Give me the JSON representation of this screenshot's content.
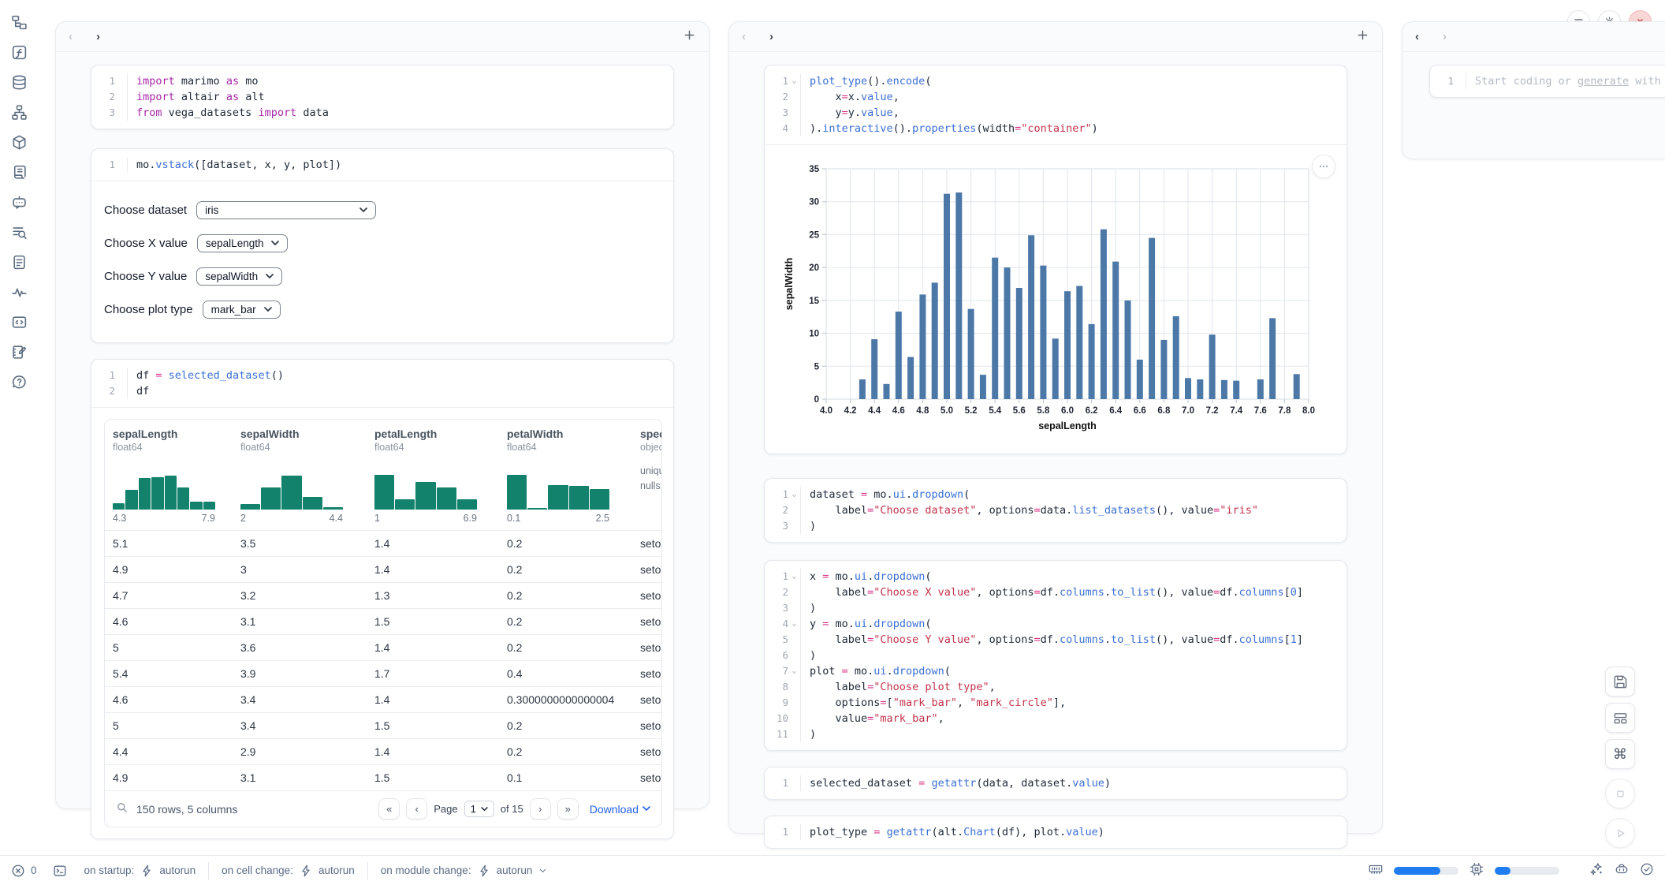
{
  "chart_data": {
    "type": "bar",
    "title": "",
    "xlabel": "sepalLength",
    "ylabel": "sepalWidth",
    "xlim": [
      4.0,
      8.0
    ],
    "ylim": [
      0,
      35
    ],
    "x_tick_step": 0.2,
    "y_tick_step": 5,
    "grid": true,
    "bar_color": "#4c78a8",
    "x": [
      4.3,
      4.4,
      4.5,
      4.6,
      4.7,
      4.8,
      4.9,
      5.0,
      5.1,
      5.2,
      5.3,
      5.4,
      5.5,
      5.6,
      5.7,
      5.8,
      5.9,
      6.0,
      6.1,
      6.2,
      6.3,
      6.4,
      6.5,
      6.6,
      6.7,
      6.8,
      6.9,
      7.0,
      7.1,
      7.2,
      7.3,
      7.4,
      7.6,
      7.7,
      7.9
    ],
    "values": [
      3.0,
      9.1,
      2.3,
      13.3,
      6.4,
      15.9,
      17.7,
      31.2,
      31.4,
      13.7,
      3.7,
      21.5,
      20.0,
      16.9,
      24.9,
      20.3,
      9.2,
      16.4,
      17.2,
      11.4,
      25.8,
      20.9,
      15.0,
      6.0,
      24.5,
      9.0,
      12.6,
      3.2,
      3.0,
      9.8,
      2.9,
      2.8,
      3.0,
      12.3,
      3.8
    ]
  },
  "sidebar": {
    "icons": [
      "file-tree",
      "function",
      "database",
      "dependency-graph",
      "package",
      "scroll",
      "chat-bot",
      "doc-search",
      "snippets",
      "tracing",
      "code-block",
      "scratchpad",
      "help"
    ]
  },
  "window_controls": {
    "buttons": [
      "menu",
      "settings",
      "close"
    ]
  },
  "panels": {
    "left": {
      "cells": [
        {
          "lines": [
            "import marimo as mo",
            "import altair as alt",
            "from vega_datasets import data"
          ],
          "folds": []
        },
        {
          "lines": [
            "mo.vstack([dataset, x, y, plot])"
          ],
          "folds": [],
          "controls": [
            {
              "label": "Choose dataset",
              "value": "iris",
              "wide": true
            },
            {
              "label": "Choose X value",
              "value": "sepalLength",
              "wide": false
            },
            {
              "label": "Choose Y value",
              "value": "sepalWidth",
              "wide": false
            },
            {
              "label": "Choose plot type",
              "value": "mark_bar",
              "wide": false
            }
          ]
        },
        {
          "lines": [
            "df = selected_dataset()",
            "df"
          ],
          "folds": []
        }
      ],
      "table": {
        "columns": [
          {
            "name": "sepalLength",
            "dtype": "float64",
            "hist": [
              13,
              42,
              66,
              68,
              71,
              46,
              17,
              16
            ],
            "min": "4.3",
            "max": "7.9"
          },
          {
            "name": "sepalWidth",
            "dtype": "float64",
            "hist": [
              12,
              46,
              72,
              26,
              5
            ],
            "min": "2",
            "max": "4.4"
          },
          {
            "name": "petalLength",
            "dtype": "float64",
            "hist": [
              74,
              22,
              58,
              47,
              22
            ],
            "min": "1",
            "max": "6.9"
          },
          {
            "name": "petalWidth",
            "dtype": "float64",
            "hist": [
              74,
              3,
              52,
              50,
              43
            ],
            "min": "0.1",
            "max": "2.5"
          },
          {
            "name": "species",
            "dtype": "object",
            "meta": [
              "unique:",
              "nulls:"
            ]
          }
        ],
        "rows": [
          [
            "5.1",
            "3.5",
            "1.4",
            "0.2",
            "setosa"
          ],
          [
            "4.9",
            "3",
            "1.4",
            "0.2",
            "setosa"
          ],
          [
            "4.7",
            "3.2",
            "1.3",
            "0.2",
            "setosa"
          ],
          [
            "4.6",
            "3.1",
            "1.5",
            "0.2",
            "setosa"
          ],
          [
            "5",
            "3.6",
            "1.4",
            "0.2",
            "setosa"
          ],
          [
            "5.4",
            "3.9",
            "1.7",
            "0.4",
            "setosa"
          ],
          [
            "4.6",
            "3.4",
            "1.4",
            "0.3000000000000004",
            "setosa"
          ],
          [
            "5",
            "3.4",
            "1.5",
            "0.2",
            "setosa"
          ],
          [
            "4.4",
            "2.9",
            "1.4",
            "0.2",
            "setosa"
          ],
          [
            "4.9",
            "3.1",
            "1.5",
            "0.1",
            "setosa"
          ]
        ],
        "footer": {
          "summary": "150 rows, 5 columns",
          "page_label": "Page",
          "page_value": "1",
          "of_label": "of 15",
          "download_label": "Download"
        }
      }
    },
    "mid": {
      "cells": [
        {
          "lines": [
            "plot_type().encode(",
            "    x=x.value,",
            "    y=y.value,",
            ").interactive().properties(width=\"container\")"
          ],
          "folds": [
            1
          ]
        },
        {
          "lines": [
            "dataset = mo.ui.dropdown(",
            "    label=\"Choose dataset\", options=data.list_datasets(), value=\"iris\"",
            ")"
          ],
          "folds": [
            1
          ]
        },
        {
          "lines": [
            "x = mo.ui.dropdown(",
            "    label=\"Choose X value\", options=df.columns.to_list(), value=df.columns[0]",
            ")",
            "y = mo.ui.dropdown(",
            "    label=\"Choose Y value\", options=df.columns.to_list(), value=df.columns[1]",
            ")",
            "plot = mo.ui.dropdown(",
            "    label=\"Choose plot type\",",
            "    options=[\"mark_bar\", \"mark_circle\"],",
            "    value=\"mark_bar\",",
            ")"
          ],
          "folds": [
            1,
            4,
            7
          ]
        },
        {
          "lines": [
            "selected_dataset = getattr(data, dataset.value)"
          ],
          "folds": []
        },
        {
          "lines": [
            "plot_type = getattr(alt.Chart(df), plot.value)"
          ],
          "folds": []
        }
      ]
    },
    "right": {
      "cell_line": "1",
      "placeholder": {
        "pre": "Start coding or ",
        "link": "generate",
        "post": " with AI"
      }
    }
  },
  "status_bar": {
    "errors_count": "0",
    "runtime": [
      {
        "label": "on startup:",
        "value": "autorun"
      },
      {
        "label": "on cell change:",
        "value": "autorun"
      },
      {
        "label": "on module change:",
        "value": "autorun"
      }
    ],
    "memory_percent": 72,
    "cpu_percent": 24
  },
  "colors": {
    "hist_teal": "#12826c",
    "link_blue": "#2563eb",
    "progress_blue": "#1f7cf1",
    "close_red": "#cf4444"
  }
}
